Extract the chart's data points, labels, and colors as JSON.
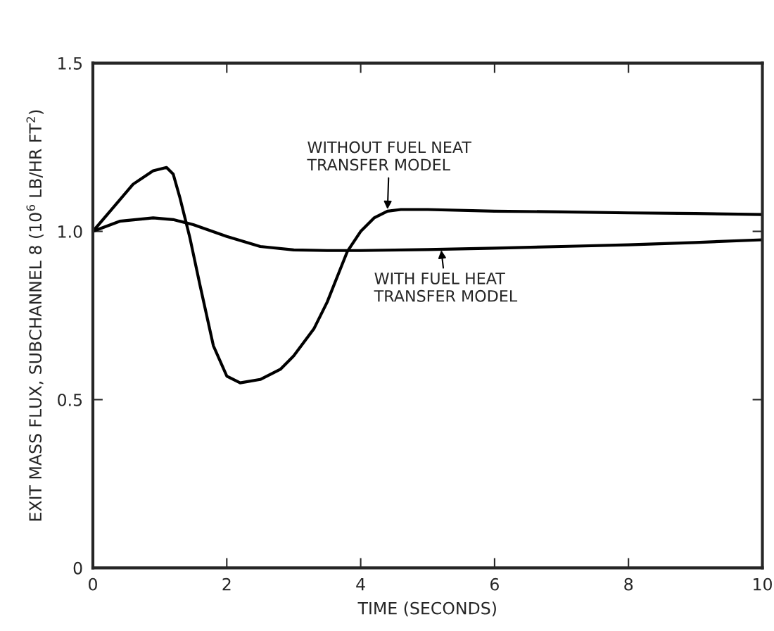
{
  "chart_data": {
    "type": "line",
    "xlabel": "TIME (SECONDS)",
    "ylabel": "EXIT MASS FLUX, SUBCHANNEL 8 (10$^{6}$ LB/HR FT$^{2}$)",
    "xlim": [
      0,
      10
    ],
    "ylim": [
      0,
      1.5
    ],
    "xticks": [
      0,
      2,
      4,
      6,
      8,
      10
    ],
    "yticks": [
      {
        "value": 0,
        "label": "0"
      },
      {
        "value": 0.5,
        "label": "0.5"
      },
      {
        "value": 1.0,
        "label": "1.0"
      },
      {
        "value": 1.5,
        "label": "1.5"
      }
    ],
    "grid": false,
    "legend": false,
    "series": [
      {
        "color": "#000000",
        "x": [
          0,
          0.3,
          0.6,
          0.9,
          1.1,
          1.2,
          1.3,
          1.45,
          1.6,
          1.8,
          2.0,
          2.2,
          2.5,
          2.8,
          3.0,
          3.3,
          3.5,
          3.7,
          3.8,
          4.0,
          4.2,
          4.4,
          4.6,
          5,
          6,
          7,
          8,
          9,
          10
        ],
        "values": [
          1.0,
          1.07,
          1.14,
          1.18,
          1.19,
          1.17,
          1.1,
          0.98,
          0.84,
          0.66,
          0.57,
          0.55,
          0.56,
          0.59,
          0.63,
          0.71,
          0.79,
          0.89,
          0.94,
          1.0,
          1.04,
          1.06,
          1.065,
          1.065,
          1.06,
          1.058,
          1.055,
          1.053,
          1.05
        ]
      },
      {
        "color": "#000000",
        "x": [
          0,
          0.4,
          0.9,
          1.2,
          1.5,
          2.0,
          2.5,
          3.0,
          3.5,
          4.0,
          5.0,
          6.0,
          7.0,
          8.0,
          9.0,
          10.0
        ],
        "values": [
          1.0,
          1.03,
          1.04,
          1.035,
          1.02,
          0.985,
          0.955,
          0.945,
          0.943,
          0.943,
          0.946,
          0.95,
          0.955,
          0.96,
          0.967,
          0.975
        ]
      }
    ],
    "annotations": [
      {
        "text": "WITHOUT FUEL NEAT\nTRANSFER MODEL",
        "x": 4.4,
        "y": 1.06
      },
      {
        "text": "WITH FUEL HEAT\nTRANSFER MODEL",
        "x": 5.2,
        "y": 0.95
      }
    ]
  }
}
